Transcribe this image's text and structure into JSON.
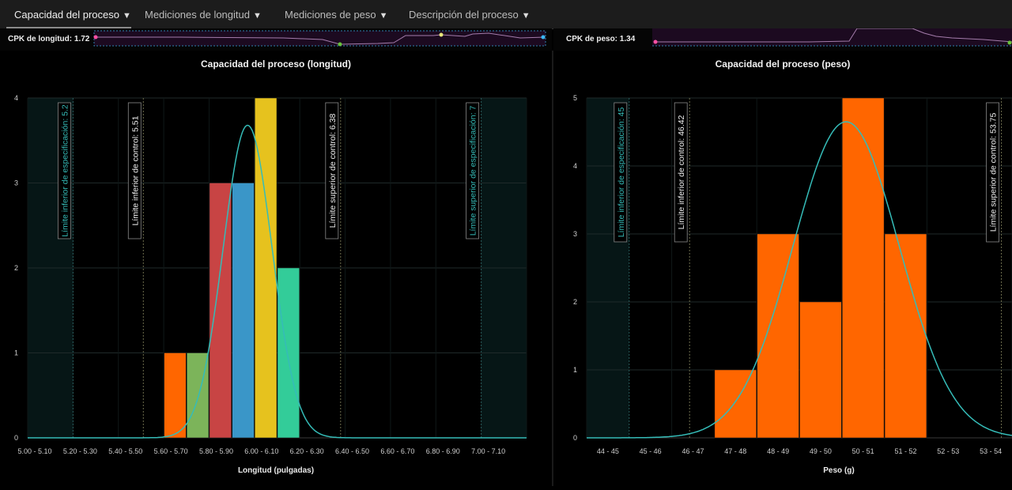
{
  "tabs": [
    {
      "label": "Capacidad del proceso",
      "caret": "▼"
    },
    {
      "label": "Mediciones de longitud",
      "caret": "▼"
    },
    {
      "label": "Mediciones de peso",
      "caret": "▼"
    },
    {
      "label": "Descripción del proceso",
      "caret": "▼"
    }
  ],
  "kpis": {
    "length": {
      "label": "CPK de longitud: 1.72"
    },
    "weight": {
      "label": "CPK de peso: 1.34"
    }
  },
  "chart_data": [
    {
      "type": "bar",
      "title": "Capacidad del proceso (longitud)",
      "xlabel": "Longitud (pulgadas)",
      "ylabel": "",
      "categories": [
        "5.00 - 5.10",
        "5.10 - 5.20",
        "5.20 - 5.30",
        "5.30 - 5.40",
        "5.40 - 5.50",
        "5.50 - 5.60",
        "5.60 - 5.70",
        "5.70 - 5.80",
        "5.80 - 5.90",
        "5.90 - 6.00",
        "6.00 - 6.10",
        "6.10 - 6.20",
        "6.20 - 6.30",
        "6.30 - 6.40",
        "6.40 - 6.50",
        "6.50 - 6.60",
        "6.60 - 6.70",
        "6.70 - 6.80",
        "6.80 - 6.90",
        "6.90 - 7.00",
        "7.00 - 7.10",
        "7.10 - 7.20"
      ],
      "tick_labels": [
        "5.00 - 5.10",
        "5.20 - 5.30",
        "5.40 - 5.50",
        "5.60 - 5.70",
        "5.80 - 5.90",
        "6.00 - 6.10",
        "6.20 - 6.30",
        "6.40 - 6.50",
        "6.60 - 6.70",
        "6.80 - 6.90",
        "7.00 - 7.10"
      ],
      "values": [
        0,
        0,
        0,
        0,
        0,
        0,
        1,
        1,
        3,
        3,
        4,
        2,
        0,
        0,
        0,
        0,
        0,
        0,
        0,
        0,
        0,
        0
      ],
      "bar_colors": [
        "#ff6600",
        "#ff6600",
        "#ff6600",
        "#ff6600",
        "#ff6600",
        "#ff6600",
        "#ff6600",
        "#7cb45a",
        "#c84444",
        "#3a96c8",
        "#e6c21e",
        "#33cc99",
        "#ff6600",
        "#ff6600",
        "#ff6600",
        "#ff6600",
        "#ff6600",
        "#ff6600",
        "#ff6600",
        "#ff6600",
        "#ff6600",
        "#ff6600"
      ],
      "ylim": [
        0,
        4
      ],
      "yticks": [
        0,
        1,
        2,
        3,
        4
      ],
      "grid": true,
      "curve": {
        "color": "#35bcb8",
        "mean": 5.97,
        "sd": 0.108,
        "peak": 3.68
      },
      "spec_limits": [
        {
          "label": "Límite inferior de especificación: 5.2",
          "value": 5.2,
          "color": "#35bcb8"
        },
        {
          "label": "Límite superior de especificación: 7",
          "value": 7.0,
          "color": "#35bcb8"
        }
      ],
      "control_limits": [
        {
          "label": "Límite inferior de control: 5.51",
          "value": 5.51,
          "color": "#f0f0f0"
        },
        {
          "label": "Límite superior de control: 6.38",
          "value": 6.38,
          "color": "#f0f0f0"
        }
      ]
    },
    {
      "type": "bar",
      "title": "Capacidad del proceso (peso)",
      "xlabel": "Peso (g)",
      "ylabel": "",
      "categories": [
        "44 - 45",
        "45 - 46",
        "46 - 47",
        "47 - 48",
        "48 - 49",
        "49 - 50",
        "50 - 51",
        "51 - 52",
        "52 - 53",
        "53 - 54"
      ],
      "tick_labels": [
        "44 - 45",
        "45 - 46",
        "46 - 47",
        "47 - 48",
        "48 - 49",
        "49 - 50",
        "50 - 51",
        "51 - 52",
        "52 - 53",
        "53 - 54"
      ],
      "values": [
        0,
        0,
        0,
        1,
        3,
        2,
        5,
        3,
        0,
        0
      ],
      "bar_colors": [
        "#ff6600",
        "#ff6600",
        "#ff6600",
        "#ff6600",
        "#ff6600",
        "#ff6600",
        "#ff6600",
        "#ff6600",
        "#ff6600",
        "#ff6600"
      ],
      "ylim": [
        0,
        5
      ],
      "yticks": [
        0,
        1,
        2,
        3,
        4,
        5
      ],
      "grid": true,
      "curve": {
        "color": "#35bcb8",
        "mean": 50.1,
        "sd": 1.25,
        "peak": 4.65
      },
      "spec_limits": [
        {
          "label": "Límite inferior de especificación: 45",
          "value": 45,
          "color": "#35bcb8"
        }
      ],
      "control_limits": [
        {
          "label": "Límite inferior de control: 46.42",
          "value": 46.42,
          "color": "#f0f0f0"
        },
        {
          "label": "Límite superior de control: 53.75",
          "value": 53.75,
          "color": "#f0f0f0"
        }
      ]
    }
  ]
}
